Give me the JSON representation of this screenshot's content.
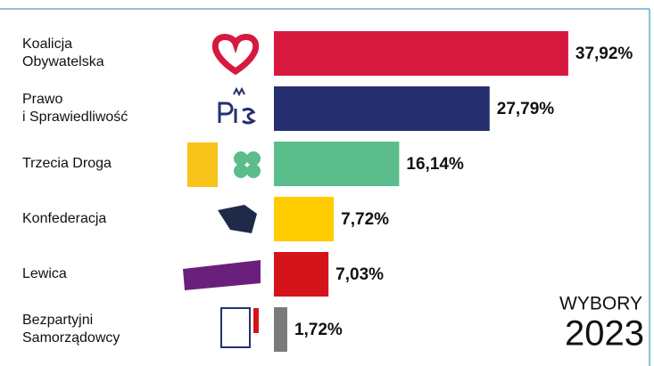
{
  "chart_data": {
    "type": "bar",
    "orientation": "horizontal",
    "categories": [
      "Koalicja\nObywatelska",
      "Prawo\ni Sprawiedliwość",
      "Trzecia Droga",
      "Konfederacja",
      "Lewica",
      "Bezpartyjni\nSamorządowcy"
    ],
    "values": [
      37.92,
      27.79,
      16.14,
      7.72,
      7.03,
      1.72
    ],
    "value_labels": [
      "37,92%",
      "27,79%",
      "16,14%",
      "7,72%",
      "7,03%",
      "1,72%"
    ],
    "colors": [
      "#d7193f",
      "#263070",
      "#5bbd8c",
      "#ffcc00",
      "#d4131b",
      "#7a7a7a"
    ],
    "annotations": [
      "WYBORY",
      "2023"
    ]
  }
}
